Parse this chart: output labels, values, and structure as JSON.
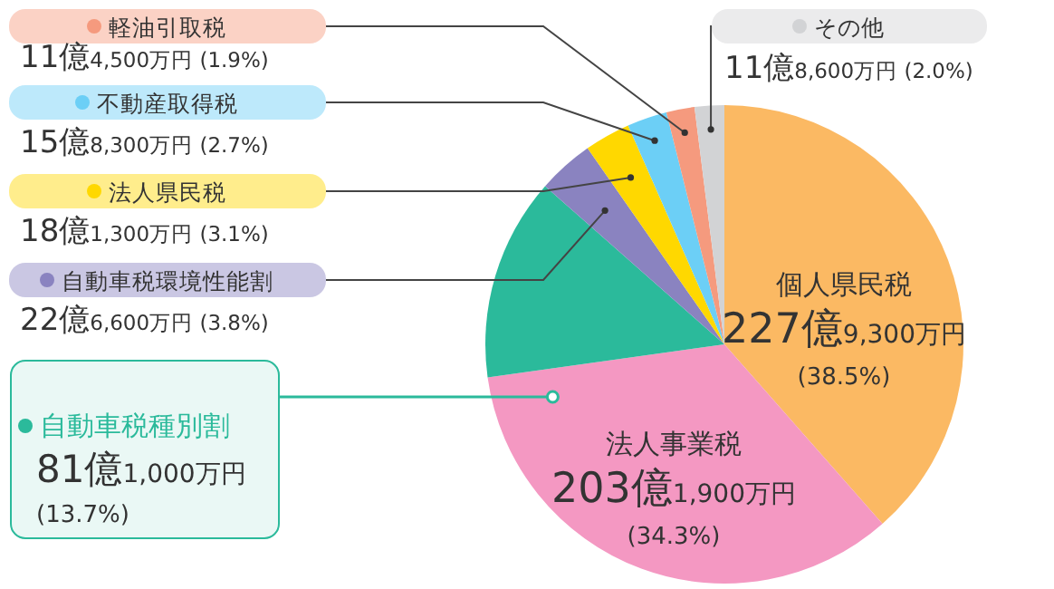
{
  "chart_data": {
    "type": "pie",
    "categories": [
      "個人県民税",
      "法人事業税",
      "自動車税種別割",
      "自動車税環境性能割",
      "法人県民税",
      "不動産取得税",
      "軽油引取税",
      "その他"
    ],
    "values": [
      38.5,
      34.3,
      13.7,
      3.8,
      3.1,
      2.7,
      1.9,
      2.0
    ],
    "colors": [
      "#fbb963",
      "#f498c2",
      "#2bba9b",
      "#8a83c0",
      "#ffd800",
      "#6ccff6",
      "#f59a7e",
      "#d2d3d5"
    ],
    "value_labels": [
      "227億9,300万円 (38.5%)",
      "203億1,900万円 (34.3%)",
      "81億1,000万円 (13.7%)",
      "22億6,600万円 (3.8%)",
      "18億1,300万円 (3.1%)",
      "15億8,300万円 (2.7%)",
      "11億4,500万円 (1.9%)",
      "11億8,600万円 (2.0%)"
    ],
    "legend": "left"
  }
}
